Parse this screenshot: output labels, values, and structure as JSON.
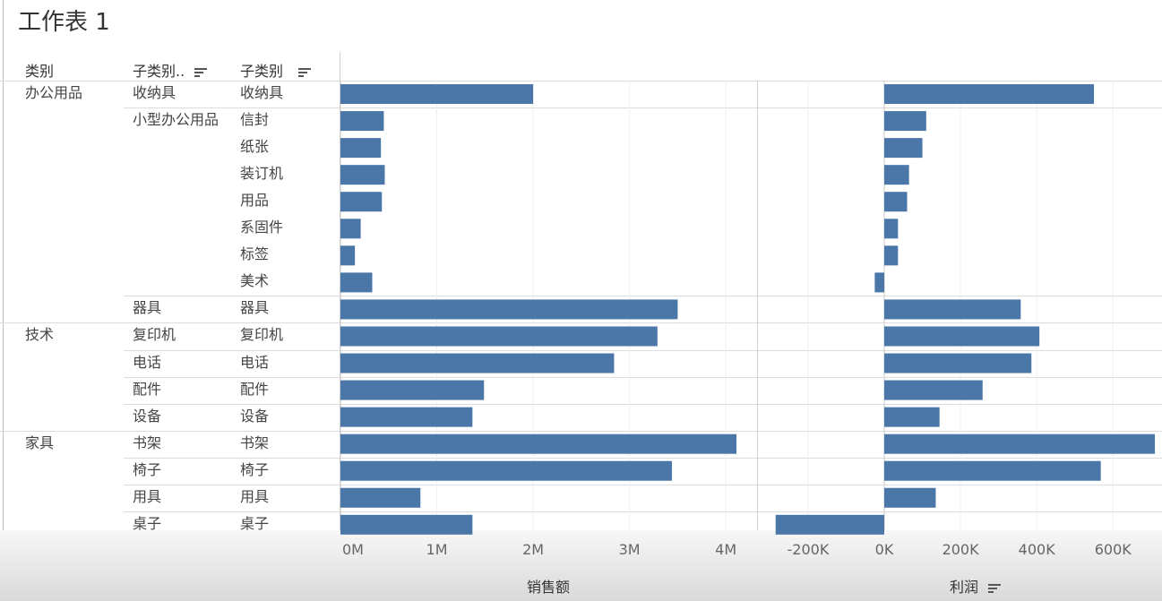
{
  "title": "工作表 1",
  "columns": {
    "category": "类别",
    "subcategory_short": "子类别..",
    "subcategory": "子类别"
  },
  "groups": [
    {
      "label": "办公用品"
    },
    {
      "label": "技术"
    },
    {
      "label": "家具"
    }
  ],
  "subgroups": [
    {
      "label": "收纳具"
    },
    {
      "label": "小型办公用品"
    },
    {
      "label": "器具"
    },
    {
      "label": "复印机"
    },
    {
      "label": "电话"
    },
    {
      "label": "配件"
    },
    {
      "label": "设备"
    },
    {
      "label": "书架"
    },
    {
      "label": "椅子"
    },
    {
      "label": "用具"
    },
    {
      "label": "桌子"
    }
  ],
  "chart_data": [
    {
      "type": "bar",
      "orientation": "horizontal",
      "xlabel": "销售额",
      "xlim": [
        0,
        4200000
      ],
      "ticks": [
        {
          "value": 0,
          "label": "0M"
        },
        {
          "value": 1000000,
          "label": "1M"
        },
        {
          "value": 2000000,
          "label": "2M"
        },
        {
          "value": 3000000,
          "label": "3M"
        },
        {
          "value": 4000000,
          "label": "4M"
        }
      ],
      "categories": [
        "收纳具",
        "信封",
        "纸张",
        "装订机",
        "用品",
        "系固件",
        "标签",
        "美术",
        "器具",
        "复印机",
        "电话",
        "配件",
        "设备",
        "书架",
        "椅子",
        "用具",
        "桌子"
      ],
      "values": [
        2000000,
        450000,
        420000,
        460000,
        430000,
        210000,
        150000,
        330000,
        3500000,
        3290000,
        2840000,
        1490000,
        1370000,
        4110000,
        3440000,
        830000,
        1370000
      ],
      "color": "#4a76a8",
      "grid": true
    },
    {
      "type": "bar",
      "orientation": "horizontal",
      "xlabel": "利润",
      "xlim": [
        -260000,
        700000
      ],
      "ticks": [
        {
          "value": -200000,
          "label": "-200K"
        },
        {
          "value": 0,
          "label": "0K"
        },
        {
          "value": 200000,
          "label": "200K"
        },
        {
          "value": 400000,
          "label": "400K"
        },
        {
          "value": 600000,
          "label": "600K"
        }
      ],
      "categories": [
        "收纳具",
        "信封",
        "纸张",
        "装订机",
        "用品",
        "系固件",
        "标签",
        "美术",
        "器具",
        "复印机",
        "电话",
        "配件",
        "设备",
        "书架",
        "椅子",
        "用具",
        "桌子"
      ],
      "values": [
        550000,
        110000,
        100000,
        65000,
        60000,
        36000,
        36000,
        -25000,
        358000,
        407000,
        386000,
        258000,
        145000,
        710000,
        568000,
        135000,
        -285000
      ],
      "color": "#4a76a8",
      "grid": true
    }
  ]
}
